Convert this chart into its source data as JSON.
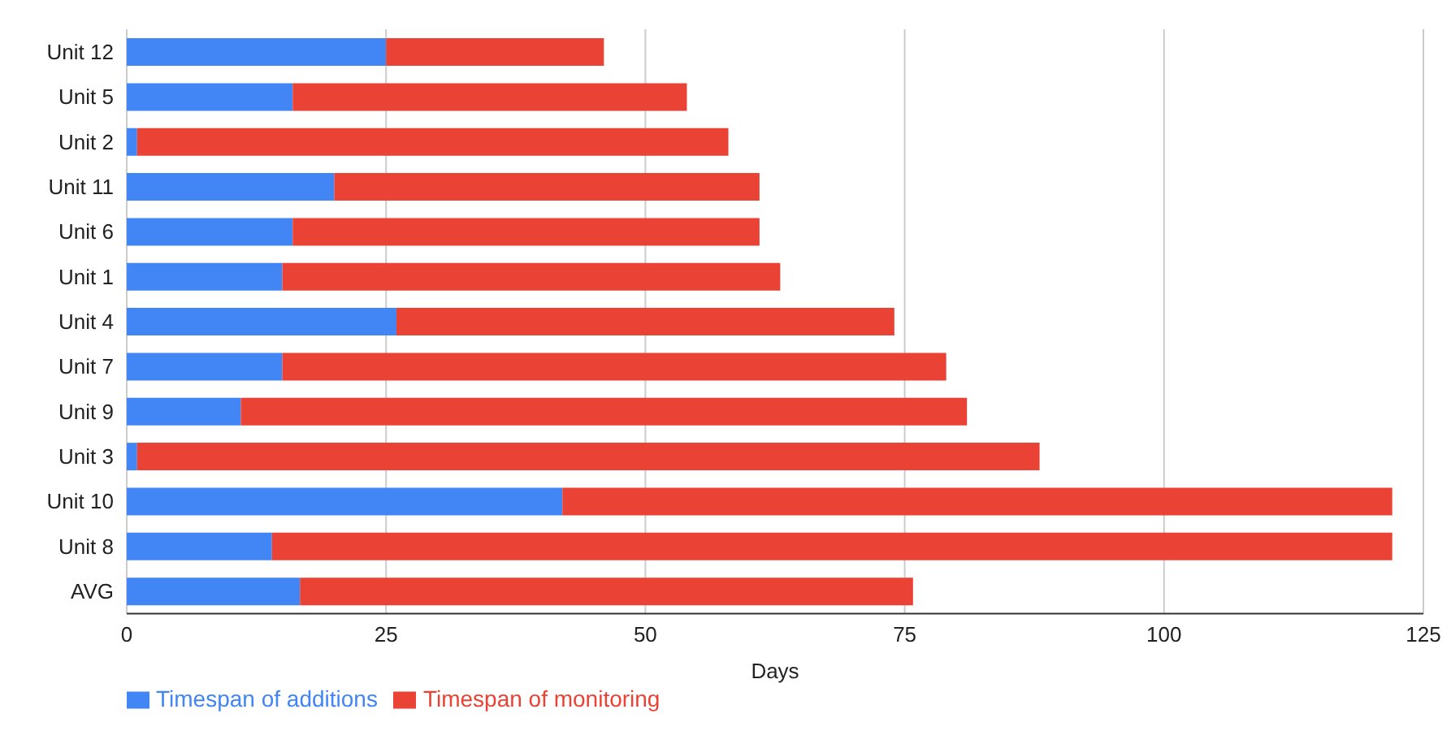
{
  "chart_data": {
    "type": "bar",
    "orientation": "horizontal",
    "stacked": true,
    "xlabel": "Days",
    "categories": [
      "Unit 12",
      "Unit 5",
      "Unit 2",
      "Unit 11",
      "Unit 6",
      "Unit 1",
      "Unit 4",
      "Unit 7",
      "Unit 9",
      "Unit 3",
      "Unit 10",
      "Unit 8",
      "AVG"
    ],
    "series": [
      {
        "name": "Timespan of additions",
        "color": "#4285f4",
        "values": [
          25,
          16,
          1,
          20,
          16,
          15,
          26,
          15,
          11,
          1,
          42,
          14,
          16.7
        ]
      },
      {
        "name": "Timespan of monitoring",
        "color": "#ea4335",
        "values": [
          21,
          38,
          57,
          41,
          45,
          48,
          48,
          64,
          70,
          87,
          80,
          108,
          59.1
        ]
      }
    ],
    "xlim": [
      0,
      125
    ],
    "xticks": [
      0,
      25,
      50,
      75,
      100,
      125
    ],
    "grid": "x",
    "legend": "bottom"
  }
}
